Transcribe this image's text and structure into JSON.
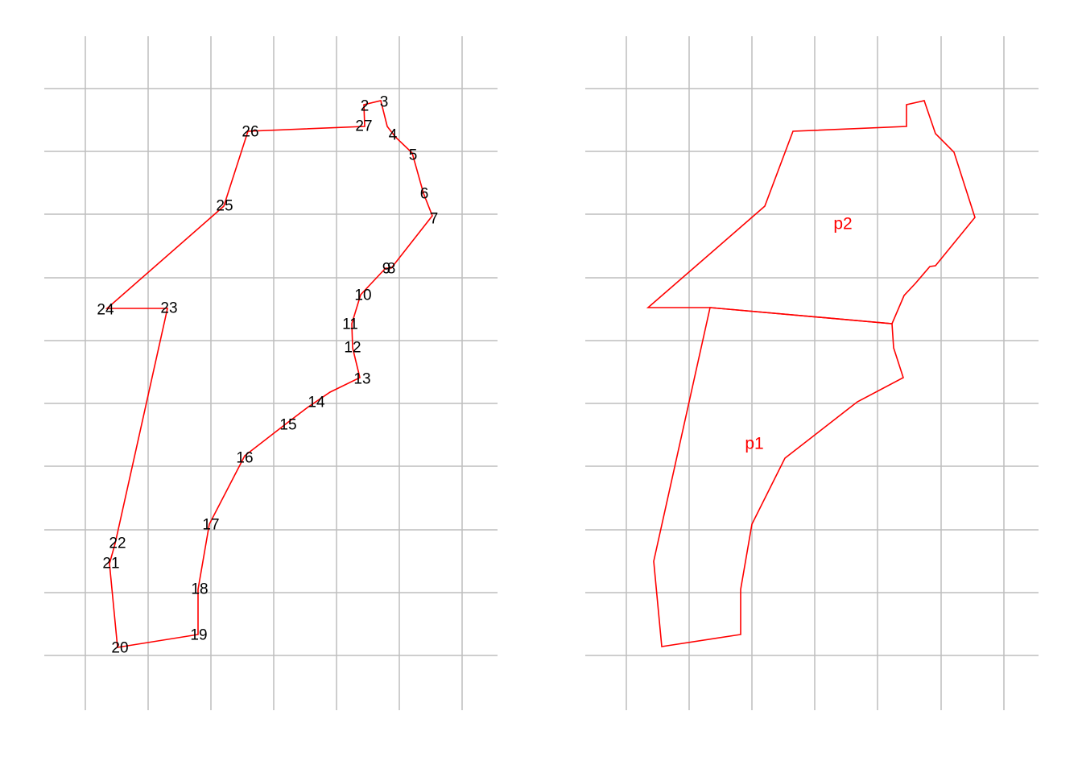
{
  "colors": {
    "grid": "#bebebe",
    "polygon": "#ff0000",
    "vertex_label": "#000000",
    "part_label": "#ff0000",
    "background": "#ffffff"
  },
  "left_panel": {
    "vertex_labels": [
      "2",
      "3",
      "4",
      "5",
      "6",
      "7",
      "8",
      "9",
      "10",
      "11",
      "12",
      "13",
      "14",
      "15",
      "16",
      "17",
      "18",
      "19",
      "20",
      "21",
      "22",
      "23",
      "24",
      "25",
      "26",
      "27"
    ]
  },
  "right_panel": {
    "part_labels": [
      "p1",
      "p2"
    ]
  }
}
